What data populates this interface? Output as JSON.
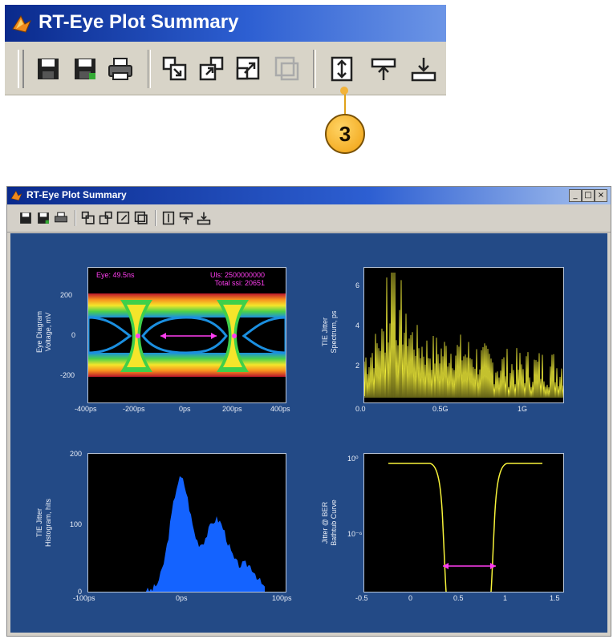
{
  "zoom_header": {
    "title": "RT-Eye Plot Summary",
    "toolbar_icons": [
      "save-icon",
      "save-as-icon",
      "print-icon",
      "copy-figure-icon",
      "export-icon",
      "expand-icon",
      "collapse-icon",
      "align-vertical-icon",
      "move-up-icon",
      "move-down-icon"
    ]
  },
  "callout": {
    "number": "3"
  },
  "window": {
    "title": "RT-Eye Plot Summary",
    "controls": {
      "minimize": "_",
      "maximize": "□",
      "close": "×"
    }
  },
  "plots": {
    "eye": {
      "ylabel_line1": "Eye Diagram",
      "ylabel_line2": "Voltage, mV",
      "annot_left": "Eye: 49.5ns",
      "annot_right_1": "Uls: 2500000000",
      "annot_right_2": "Total ssi: 20651",
      "xticks": [
        "-400ps",
        "-200ps",
        "0ps",
        "200ps",
        "400ps"
      ],
      "yticks": [
        "200",
        "0",
        "-200"
      ]
    },
    "spectrum": {
      "ylabel_line1": "TIE Jitter",
      "ylabel_line2": "Spectrum, ps",
      "xticks": [
        "0.0",
        "0.5G",
        "1G"
      ],
      "yticks": [
        "6",
        "4",
        "2"
      ]
    },
    "histogram": {
      "ylabel_line1": "TIE Jitter",
      "ylabel_line2": "Histogram, hits",
      "xticks": [
        "-100ps",
        "0ps",
        "100ps"
      ],
      "yticks": [
        "200",
        "100",
        "0"
      ]
    },
    "bathtub": {
      "ylabel_line1": "Jitter @ BER",
      "ylabel_line2": "Bathtub Curve",
      "xticks": [
        "-0.5",
        "0",
        "0.5",
        "1",
        "1.5"
      ],
      "yticks": [
        "10⁰",
        "10⁻⁶"
      ]
    }
  },
  "colors": {
    "figure_bg": "#234a86",
    "title_bar": "#0a2a8c",
    "callout": "#f0a010",
    "marker": "#ff3df0",
    "trace": "#f7f33a",
    "histogram": "#1463ff"
  }
}
